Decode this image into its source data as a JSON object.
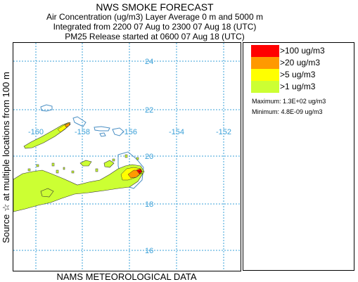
{
  "header": {
    "title": "NWS SMOKE FORECAST",
    "line2": "Air Concentration (ug/m3) Layer Average    0 m and  5000 m",
    "line3": "Integrated from 2200 07 Aug to 2300 07 Aug 18 (UTC)",
    "line4": "PM25 Release started at 0600 07 Aug 18 (UTC)"
  },
  "side_label": "Source ☆   at multiple locations       from   100 m",
  "bottom_label": "NAMS METEOROLOGICAL DATA",
  "map": {
    "lat_labels": [
      "24",
      "22",
      "20",
      "18",
      "16"
    ],
    "lon_labels": [
      "-160",
      "-158",
      "-156",
      "-154",
      "-152"
    ],
    "grid_color": "#3aa0d8",
    "label_color": "#3aa0d8",
    "coast_color": "#4a8fc4",
    "source_marker": "☆"
  },
  "legend": {
    "items": [
      {
        "label": ">100 ug/m3",
        "color": "#ff0000"
      },
      {
        "label": ">20 ug/m3",
        "color": "#ff9900"
      },
      {
        "label": ">5 ug/m3",
        "color": "#ffff00"
      },
      {
        "label": ">1 ug/m3",
        "color": "#ccff33"
      }
    ],
    "maximum": "Maximum:  1.3E+02 ug/m3",
    "minimum": "Minimum:  4.8E-09 ug/m3"
  }
}
